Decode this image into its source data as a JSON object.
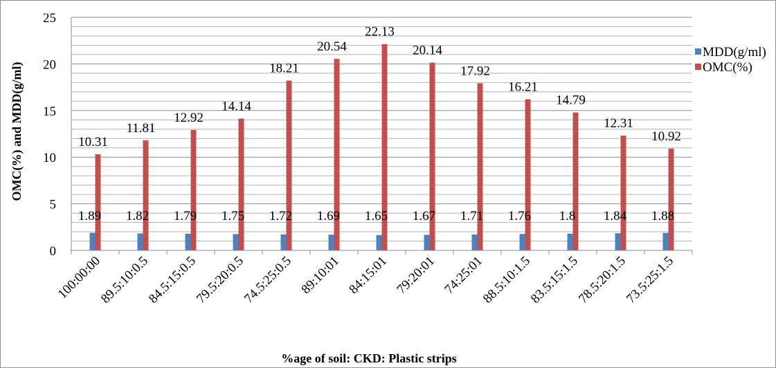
{
  "chart_data": {
    "type": "bar",
    "title": "",
    "xlabel": "%age of soil: CKD:  Plastic strips",
    "ylabel": "OMC(%)  and MDD(g/ml)",
    "ylim": [
      0,
      25
    ],
    "yticks": [
      0,
      5,
      10,
      15,
      20,
      25
    ],
    "grid": "horizontal",
    "legend_position": "right",
    "categories": [
      "100:00:00",
      "89.5:10:0.5",
      "84.5:15:0.5",
      "79.5:20:0.5",
      "74.5:25:0.5",
      "89:10:01",
      "84:15:01",
      "79:20:01",
      "74:25:01",
      "88.5:10:1.5",
      "83.5:15:1.5",
      "78.5:20:1.5",
      "73.5:25:1.5"
    ],
    "series": [
      {
        "name": "MDD(g/ml)",
        "color": "#4f81bd",
        "values": [
          1.89,
          1.82,
          1.79,
          1.75,
          1.72,
          1.69,
          1.65,
          1.67,
          1.71,
          1.76,
          1.8,
          1.84,
          1.88
        ],
        "labels": [
          "1.89",
          "1.82",
          "1.79",
          "1.75",
          "1.72",
          "1.69",
          "1.65",
          "1.67",
          "1.71",
          "1.76",
          "1.8",
          "1.84",
          "1.88"
        ]
      },
      {
        "name": "OMC(%)",
        "color": "#c0504d",
        "values": [
          10.31,
          11.81,
          12.92,
          14.14,
          18.21,
          20.54,
          22.13,
          20.14,
          17.92,
          16.21,
          14.79,
          12.31,
          10.92
        ],
        "labels": [
          "10.31",
          "11.81",
          "12.92",
          "14.14",
          "18.21",
          "20.54",
          "22.13",
          "20.14",
          "17.92",
          "16.21",
          "14.79",
          "12.31",
          "10.92"
        ]
      }
    ]
  }
}
